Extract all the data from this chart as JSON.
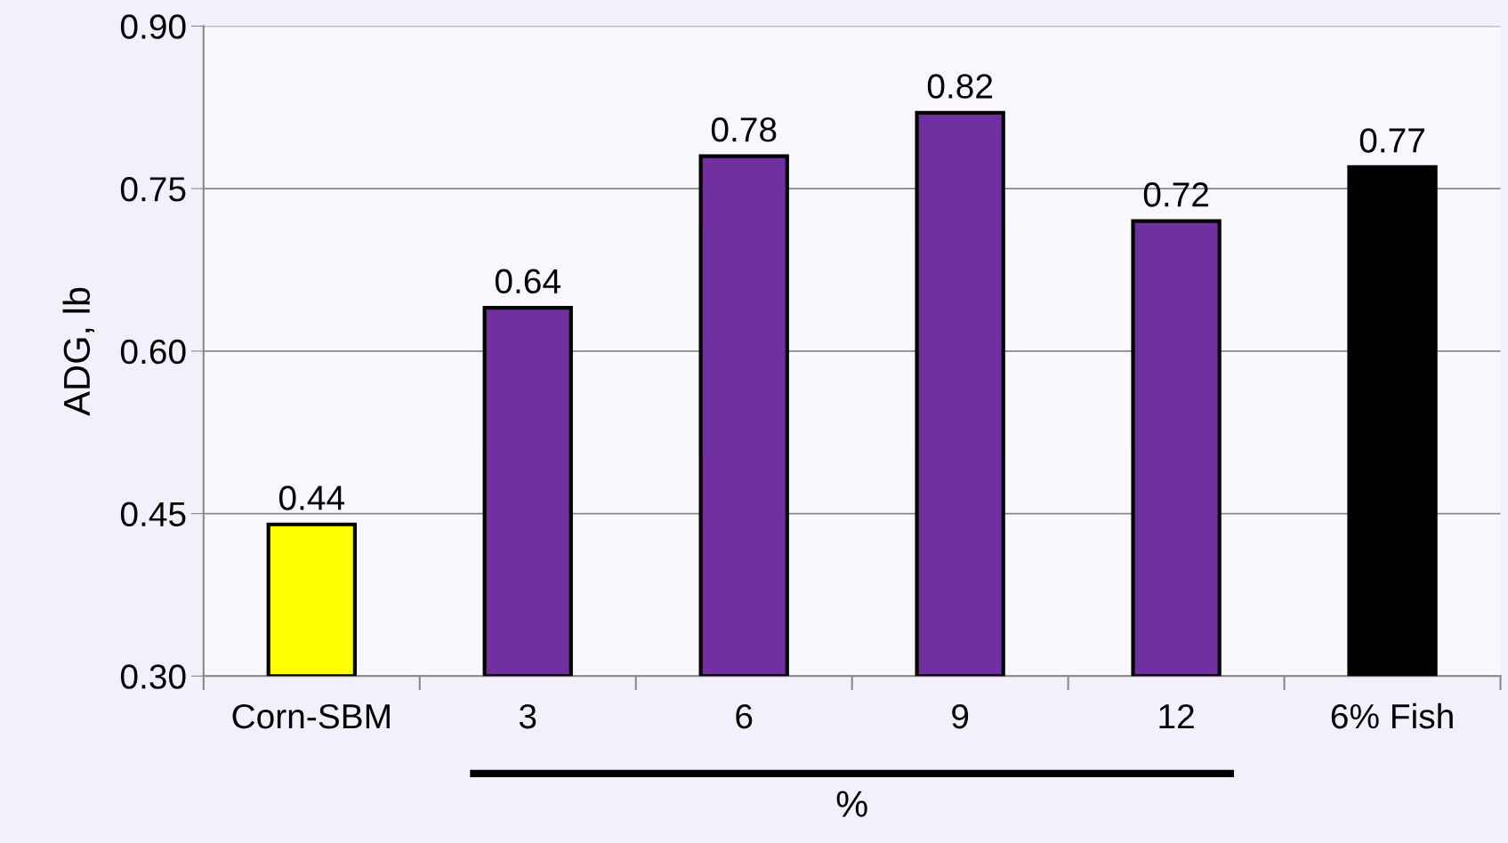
{
  "chart_data": {
    "type": "bar",
    "ylabel": "ADG, lb",
    "xlabel": "%",
    "categories": [
      "Corn-SBM",
      "3",
      "6",
      "9",
      "12",
      "6% Fish"
    ],
    "values": [
      0.44,
      0.64,
      0.78,
      0.82,
      0.72,
      0.77
    ],
    "colors": [
      "#ffff00",
      "#7030a0",
      "#7030a0",
      "#7030a0",
      "#7030a0",
      "#000000"
    ],
    "ylim": [
      0.3,
      0.9
    ],
    "yticks": [
      {
        "value": 0.3,
        "label": "0.30"
      },
      {
        "value": 0.45,
        "label": "0.45"
      },
      {
        "value": 0.6,
        "label": "0.60"
      },
      {
        "value": 0.75,
        "label": "0.75"
      },
      {
        "value": 0.9,
        "label": "0.90"
      }
    ],
    "grid": "y",
    "data_labels": true
  }
}
